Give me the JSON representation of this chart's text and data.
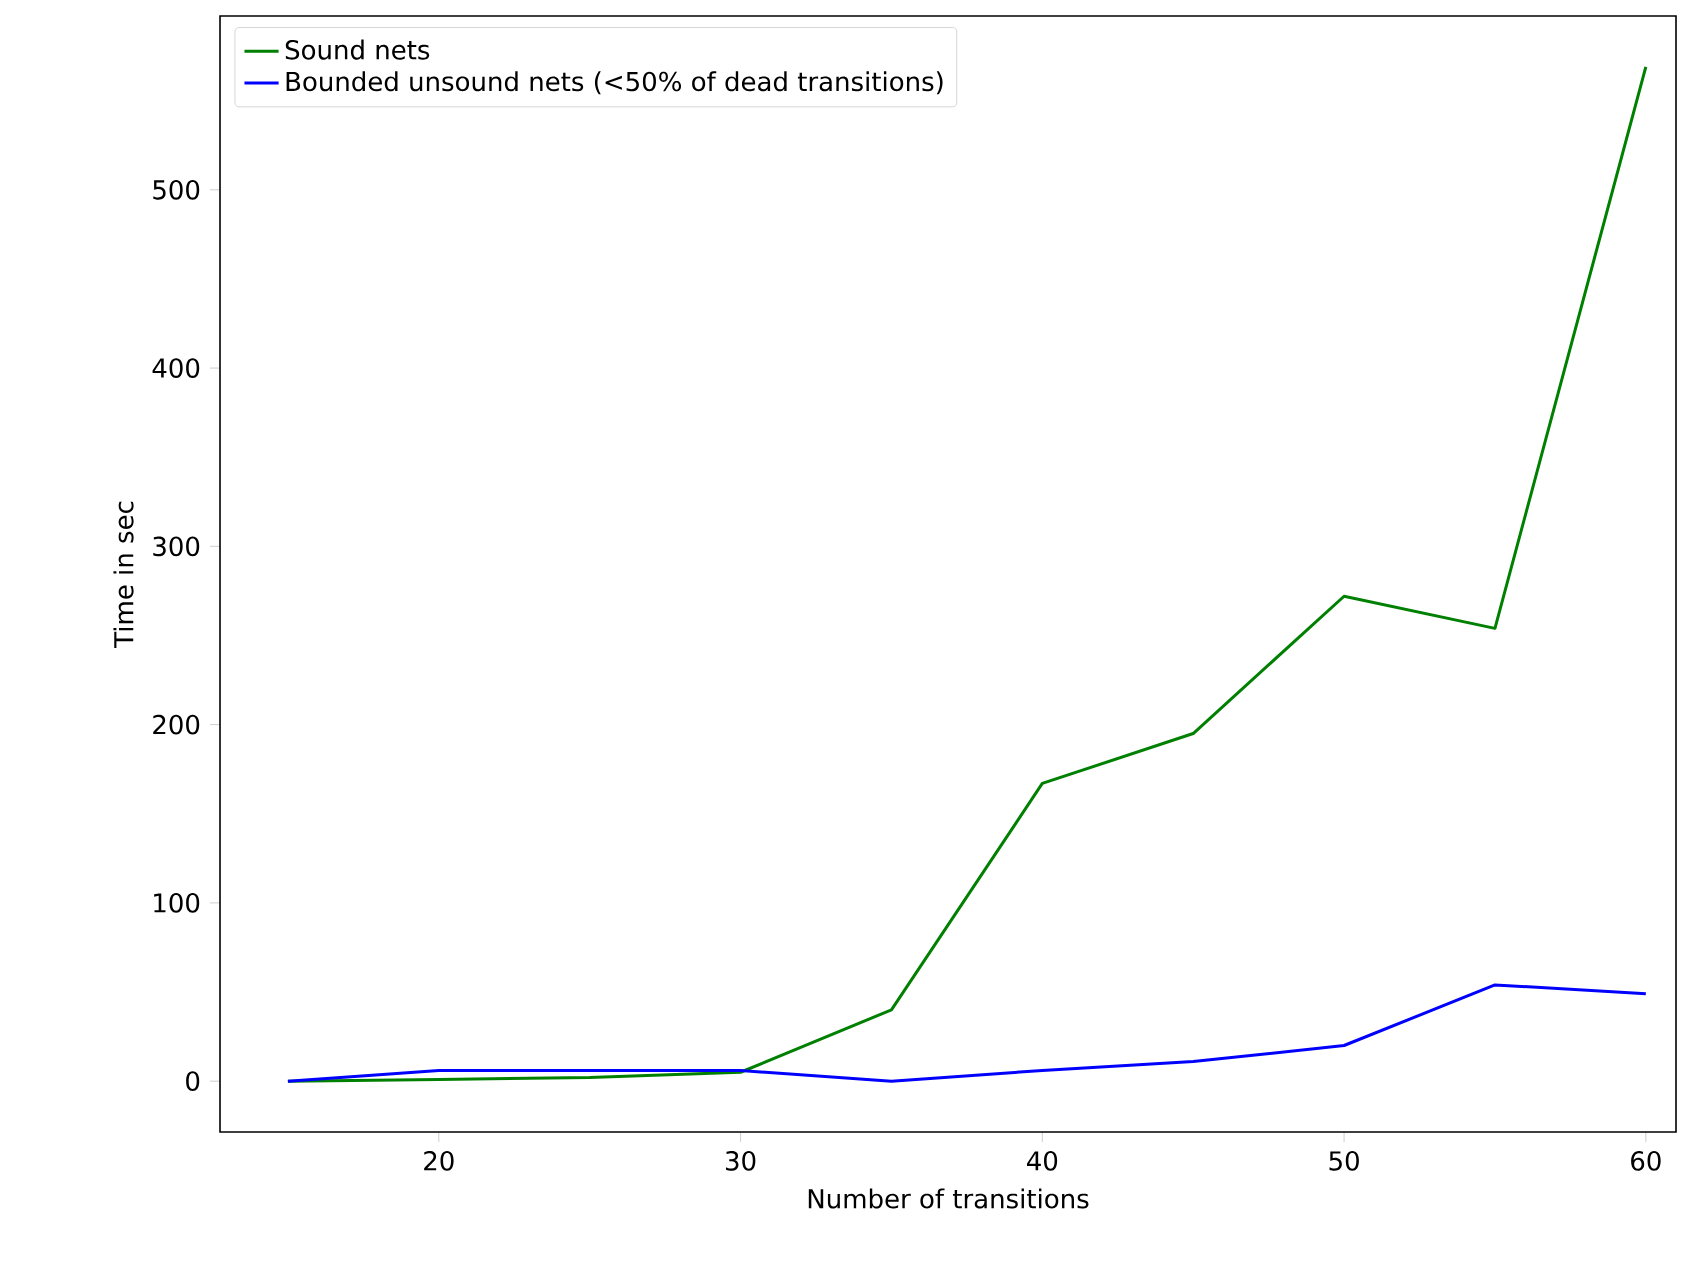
{
  "chart_data": {
    "type": "line",
    "xlabel": "Number of transitions",
    "ylabel": "Time in sec",
    "x": [
      15,
      20,
      25,
      30,
      35,
      40,
      45,
      50,
      55,
      60
    ],
    "series": [
      {
        "name": "Sound nets",
        "color": "#008000",
        "values": [
          0,
          1,
          2,
          5,
          40,
          167,
          195,
          272,
          254,
          569
        ]
      },
      {
        "name": "Bounded unsound nets (<50% of dead transitions)",
        "color": "#0000ff",
        "values": [
          0,
          6,
          6,
          6,
          0,
          6,
          11,
          20,
          54,
          49
        ]
      }
    ],
    "xlim": [
      12.75,
      61
    ],
    "ylim": [
      -28.5,
      597.5
    ],
    "xticks": [
      20,
      30,
      40,
      50,
      60
    ],
    "yticks": [
      0,
      100,
      200,
      300,
      400,
      500
    ],
    "legend": "top left",
    "grid": false,
    "marker": "none",
    "line_style": "solid"
  }
}
